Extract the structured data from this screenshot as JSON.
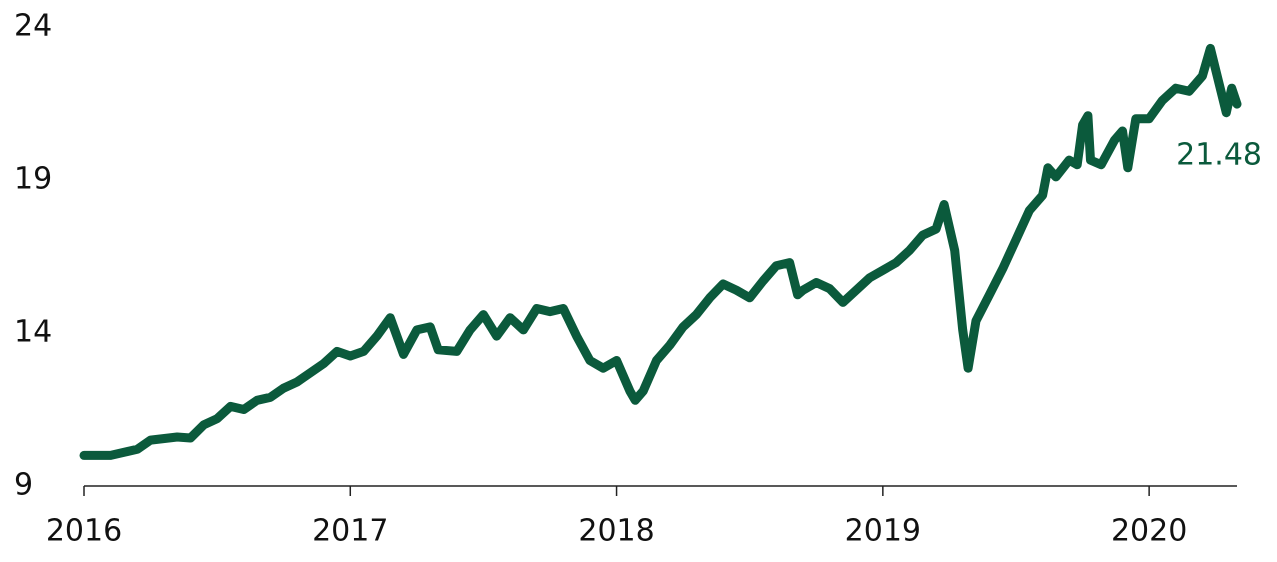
{
  "chart_data": {
    "type": "line",
    "annotation": "21.48",
    "x": [
      2016.0,
      2016.1,
      2016.2,
      2016.25,
      2016.35,
      2016.4,
      2016.45,
      2016.5,
      2016.55,
      2016.6,
      2016.65,
      2016.7,
      2016.75,
      2016.8,
      2016.85,
      2016.9,
      2016.95,
      2017.0,
      2017.05,
      2017.1,
      2017.15,
      2017.2,
      2017.25,
      2017.3,
      2017.33,
      2017.4,
      2017.45,
      2017.5,
      2017.55,
      2017.6,
      2017.65,
      2017.7,
      2017.75,
      2017.8,
      2017.85,
      2017.9,
      2017.95,
      2018.0,
      2018.05,
      2018.07,
      2018.1,
      2018.15,
      2018.2,
      2018.25,
      2018.3,
      2018.35,
      2018.4,
      2018.45,
      2018.5,
      2018.55,
      2018.6,
      2018.65,
      2018.68,
      2018.7,
      2018.75,
      2018.8,
      2018.85,
      2018.9,
      2018.95,
      2019.0,
      2019.05,
      2019.1,
      2019.15,
      2019.2,
      2019.23,
      2019.27,
      2019.3,
      2019.32,
      2019.35,
      2019.4,
      2019.45,
      2019.5,
      2019.55,
      2019.6,
      2019.62,
      2019.65,
      2019.7,
      2019.73,
      2019.75,
      2019.77,
      2019.78,
      2019.82,
      2019.87,
      2019.9,
      2019.92,
      2019.95,
      2020.0,
      2020.05,
      2020.1,
      2020.15,
      2020.2,
      2020.23,
      2020.27,
      2020.29,
      2020.31,
      2020.33
    ],
    "series": [
      {
        "color": "#0b5a3c",
        "values": [
          10.0,
          10.0,
          10.2,
          10.5,
          10.6,
          10.57,
          11.0,
          11.2,
          11.6,
          11.5,
          11.8,
          11.9,
          12.2,
          12.4,
          12.7,
          13.0,
          13.4,
          13.25,
          13.4,
          13.9,
          14.5,
          13.3,
          14.1,
          14.2,
          13.45,
          13.4,
          14.1,
          14.6,
          13.9,
          14.5,
          14.1,
          14.8,
          14.7,
          14.8,
          13.9,
          13.1,
          12.85,
          13.1,
          12.1,
          11.8,
          12.1,
          13.1,
          13.6,
          14.2,
          14.6,
          15.15,
          15.6,
          15.4,
          15.15,
          15.7,
          16.2,
          16.3,
          15.25,
          15.4,
          15.65,
          15.45,
          15.0,
          15.4,
          15.8,
          16.05,
          16.3,
          16.7,
          17.2,
          17.4,
          18.2,
          16.7,
          14.1,
          12.85,
          14.4,
          15.25,
          16.1,
          17.05,
          18.0,
          18.5,
          19.4,
          19.1,
          19.65,
          19.5,
          20.8,
          21.1,
          19.65,
          19.5,
          20.3,
          20.6,
          19.4,
          21.0,
          21.0,
          21.6,
          22.0,
          21.9,
          22.4,
          23.3,
          21.9,
          21.2,
          22.0,
          21.48
        ]
      }
    ],
    "xlim": [
      2016,
      2020.33
    ],
    "xticks": [
      2016,
      2017,
      2018,
      2019,
      2020
    ],
    "ylim": [
      9,
      24
    ],
    "yticks": [
      9,
      14,
      19,
      24
    ]
  }
}
